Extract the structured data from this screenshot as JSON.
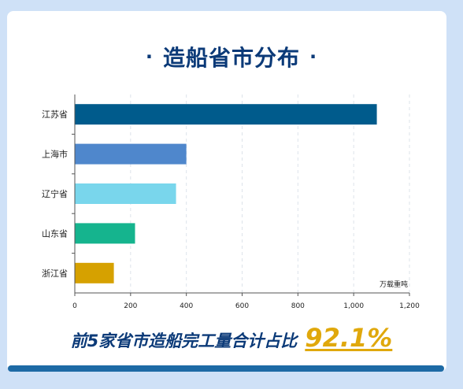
{
  "title": "造船省市分布",
  "title_dot": "·",
  "summary": {
    "text": "前5家省市造船完工量合计占比",
    "value": "92.1%"
  },
  "chart_data": {
    "type": "bar",
    "orientation": "horizontal",
    "categories": [
      "江苏省",
      "上海市",
      "辽宁省",
      "山东省",
      "浙江省"
    ],
    "values": [
      1083,
      400,
      363,
      216,
      140
    ],
    "colors": [
      "#005b8c",
      "#4f87cc",
      "#79d6ec",
      "#15b48e",
      "#d6a100"
    ],
    "unit_label": "万载重吨",
    "xlim": [
      0,
      1200
    ],
    "xticks": [
      0,
      200,
      400,
      600,
      800,
      1000,
      1200
    ],
    "xtick_labels": [
      "0",
      "200",
      "400",
      "600",
      "800",
      "1,000",
      "1,200"
    ],
    "grid": true
  }
}
